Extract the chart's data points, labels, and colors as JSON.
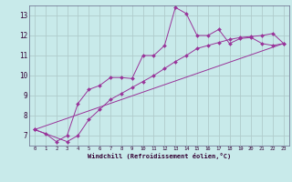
{
  "xlabel": "Windchill (Refroidissement éolien,°C)",
  "bg_color": "#c8eaea",
  "grid_color": "#b0cccc",
  "line_color": "#993399",
  "xlim": [
    -0.5,
    23.5
  ],
  "ylim": [
    6.5,
    13.5
  ],
  "xticks": [
    0,
    1,
    2,
    3,
    4,
    5,
    6,
    7,
    8,
    9,
    10,
    11,
    12,
    13,
    14,
    15,
    16,
    17,
    18,
    19,
    20,
    21,
    22,
    23
  ],
  "yticks": [
    7,
    8,
    9,
    10,
    11,
    12,
    13
  ],
  "line1_x": [
    0,
    1,
    2,
    3,
    4,
    5,
    6,
    7,
    8,
    9,
    10,
    11,
    12,
    13,
    14,
    15,
    16,
    17,
    18,
    19,
    20,
    21,
    22,
    23
  ],
  "line1_y": [
    7.3,
    7.1,
    6.7,
    7.0,
    8.6,
    9.3,
    9.5,
    9.9,
    9.9,
    9.85,
    11.0,
    11.0,
    11.5,
    13.4,
    13.1,
    12.0,
    12.0,
    12.3,
    11.6,
    11.85,
    11.9,
    11.6,
    11.5,
    11.6
  ],
  "line2_x": [
    0,
    3,
    4,
    5,
    6,
    7,
    8,
    9,
    10,
    11,
    12,
    13,
    14,
    15,
    16,
    17,
    18,
    19,
    20,
    21,
    22,
    23
  ],
  "line2_y": [
    7.3,
    6.7,
    7.0,
    7.8,
    8.3,
    8.8,
    9.1,
    9.4,
    9.7,
    10.0,
    10.35,
    10.7,
    11.0,
    11.35,
    11.5,
    11.65,
    11.8,
    11.9,
    11.95,
    12.0,
    12.1,
    11.6
  ],
  "line3_x": [
    0,
    23
  ],
  "line3_y": [
    7.3,
    11.6
  ]
}
